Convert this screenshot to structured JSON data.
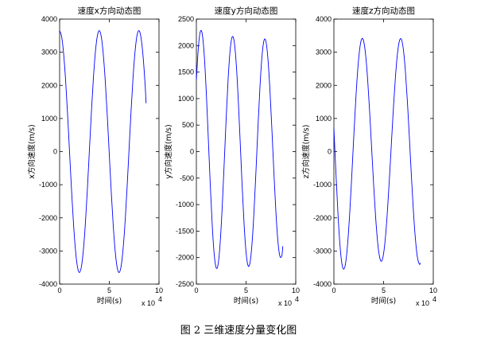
{
  "caption": "图 2  三维速度分量变化图",
  "colors": {
    "line": "#0000ff",
    "axis": "#000000",
    "background": "#ffffff"
  },
  "chart_data": [
    {
      "type": "line",
      "title": "速度x方向动态图",
      "xlabel": "时间(s)",
      "ylabel": "x方向速度(m/s)",
      "x_exponent_label": "x 10",
      "x_exponent_power": "4",
      "xlim": [
        0,
        100000
      ],
      "ylim": [
        -4000,
        4000
      ],
      "xticks": [
        0,
        50000,
        100000
      ],
      "xtick_labels": [
        "0",
        "5",
        "10"
      ],
      "yticks": [
        -4000,
        -3000,
        -2000,
        -1000,
        0,
        1000,
        2000,
        3000,
        4000
      ],
      "ytick_labels": [
        "-4000",
        "-3000",
        "-2000",
        "-1000",
        "0",
        "1000",
        "2000",
        "3000",
        "4000"
      ],
      "grid": false,
      "series": [
        {
          "x": [
            0,
            2000,
            4000,
            6000,
            8000,
            10000,
            12000,
            14000,
            16000,
            18000,
            20000,
            22000,
            24000,
            26000,
            28000,
            30000,
            32000,
            34000,
            36000,
            38000,
            40000,
            42000,
            44000,
            46000,
            48000,
            50000,
            52000,
            54000,
            56000,
            58000,
            60000,
            62000,
            64000,
            66000,
            68000,
            70000,
            72000,
            74000,
            76000,
            78000,
            80000,
            82000,
            84000,
            86000,
            87000
          ],
          "y": [
            3650,
            3475,
            2963,
            2160,
            1134,
            -20,
            -1172,
            -2192,
            -2986,
            -3487,
            -3650,
            -3462,
            -2939,
            -2128,
            -1096,
            60,
            1210,
            2224,
            3009,
            3499,
            3650,
            3450,
            2916,
            2096,
            1058,
            -100,
            -1247,
            -2255,
            -3031,
            -3511,
            -3649,
            -3437,
            -2891,
            -2063,
            -1020,
            140,
            1285,
            2286,
            3053,
            3522,
            3648,
            3423,
            2867,
            2030,
            1460
          ]
        }
      ]
    },
    {
      "type": "line",
      "title": "速度y方向动态图",
      "xlabel": "时间(s)",
      "ylabel": "y方向速度(m/s)",
      "x_exponent_label": "x 10",
      "x_exponent_power": "4",
      "xlim": [
        0,
        100000
      ],
      "ylim": [
        -2500,
        2500
      ],
      "xticks": [
        0,
        50000,
        100000
      ],
      "xtick_labels": [
        "0",
        "5",
        "10"
      ],
      "yticks": [
        -2500,
        -2000,
        -1500,
        -1000,
        -500,
        0,
        500,
        1000,
        1500,
        2000,
        2500
      ],
      "ytick_labels": [
        "-2500",
        "-2000",
        "-1500",
        "-1000",
        "-500",
        "0",
        "500",
        "1000",
        "1500",
        "2000",
        "2500"
      ],
      "grid": false,
      "series": [
        {
          "x": [
            0,
            2000,
            4000,
            6000,
            8000,
            10000,
            12000,
            14000,
            16000,
            18000,
            20000,
            22000,
            24000,
            26000,
            28000,
            30000,
            32000,
            34000,
            36000,
            38000,
            40000,
            42000,
            44000,
            46000,
            48000,
            50000,
            52000,
            54000,
            56000,
            58000,
            60000,
            62000,
            64000,
            66000,
            68000,
            70000,
            72000,
            74000,
            76000,
            78000,
            80000,
            82000,
            84000,
            86000,
            87000
          ],
          "y": [
            1350,
            1962,
            2265,
            2209,
            1801,
            1110,
            255,
            -627,
            -1399,
            -1947,
            -2196,
            -2111,
            -1708,
            -1049,
            -224,
            630,
            1380,
            1916,
            2162,
            2086,
            1692,
            1040,
            225,
            -618,
            -1362,
            -1896,
            -2150,
            -2096,
            -1738,
            -1131,
            -360,
            464,
            1219,
            1791,
            2093,
            2079,
            1756,
            1172,
            420,
            -385,
            -1125,
            -1679,
            -1969,
            -1965,
            -1784
          ]
        }
      ]
    },
    {
      "type": "line",
      "title": "速度z方向动态图",
      "xlabel": "时间(s)",
      "ylabel": "z方向速度(m/s)",
      "x_exponent_label": "x 10",
      "x_exponent_power": "4",
      "xlim": [
        0,
        100000
      ],
      "ylim": [
        -4000,
        4000
      ],
      "xticks": [
        0,
        50000,
        100000
      ],
      "xtick_labels": [
        "0",
        "5",
        "10"
      ],
      "yticks": [
        -4000,
        -3000,
        -2000,
        -1000,
        0,
        1000,
        2000,
        3000,
        4000
      ],
      "ytick_labels": [
        "-4000",
        "-3000",
        "-2000",
        "-1000",
        "0",
        "1000",
        "2000",
        "3000",
        "4000"
      ],
      "grid": false,
      "series": [
        {
          "x": [
            0,
            2000,
            4000,
            6000,
            8000,
            10000,
            12000,
            14000,
            16000,
            18000,
            20000,
            22000,
            24000,
            26000,
            28000,
            30000,
            32000,
            34000,
            36000,
            38000,
            40000,
            42000,
            44000,
            46000,
            48000,
            50000,
            52000,
            54000,
            56000,
            58000,
            60000,
            62000,
            64000,
            66000,
            68000,
            70000,
            72000,
            74000,
            76000,
            78000,
            80000,
            82000,
            84000,
            86000,
            87000
          ],
          "y": [
            700,
            -620,
            -1820,
            -2781,
            -3371,
            -3548,
            -3321,
            -2715,
            -1817,
            -723,
            455,
            1560,
            2471,
            3106,
            3402,
            3328,
            2899,
            2159,
            1189,
            89,
            -1006,
            -1981,
            -2732,
            -3186,
            -3307,
            -3079,
            -2535,
            -1730,
            -746,
            325,
            1370,
            2283,
            2966,
            3349,
            3384,
            3060,
            2406,
            1488,
            399,
            -743,
            -1786,
            -2627,
            -3182,
            -3399,
            -3360
          ]
        }
      ]
    }
  ]
}
